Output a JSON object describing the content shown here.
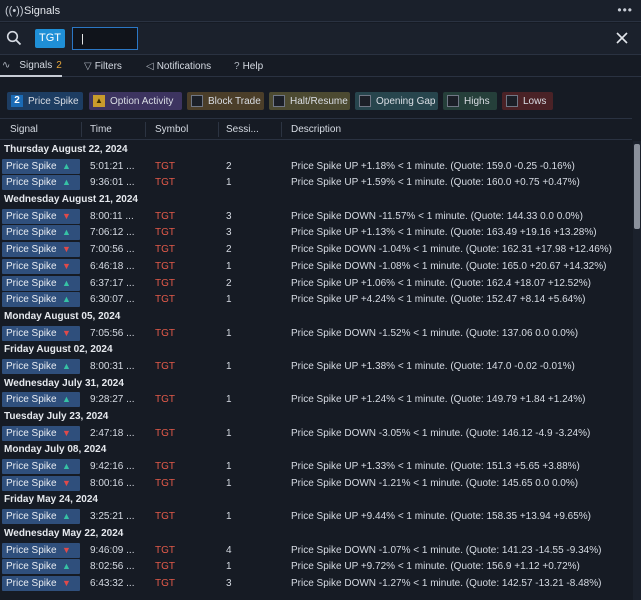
{
  "window": {
    "title": "Signals",
    "menu_icon": "ellipsis-icon"
  },
  "search": {
    "ticker": "TGT",
    "input_value": "|",
    "placeholder": ""
  },
  "tabs": [
    {
      "label": "Signals",
      "badge": "2",
      "icon": "pulse-icon"
    },
    {
      "label": "Filters",
      "icon": "filter-icon"
    },
    {
      "label": "Notifications",
      "icon": "megaphone-icon"
    },
    {
      "label": "Help",
      "icon": "question-icon"
    }
  ],
  "filters": [
    {
      "label": "Price Spike",
      "marker": "2",
      "bg": "#1d3d62",
      "color": "#1b6bb5"
    },
    {
      "label": "Option Activity",
      "marker": "lock",
      "bg": "#3d3460",
      "color": "#c99b2c"
    },
    {
      "label": "Block Trade",
      "marker": "box",
      "bg": "#4b3e29"
    },
    {
      "label": "Halt/Resume",
      "marker": "box",
      "bg": "#4c4a31"
    },
    {
      "label": "Opening Gap",
      "marker": "box",
      "bg": "#27454d"
    },
    {
      "label": "Highs",
      "marker": "box",
      "bg": "#253f3a"
    },
    {
      "label": "Lows",
      "marker": "box",
      "bg": "#4a2226"
    }
  ],
  "columns": [
    "Signal",
    "Time",
    "Symbol",
    "Sessi...",
    "Description"
  ],
  "groups": [
    {
      "date": "Thursday August 22, 2024",
      "rows": [
        {
          "signal": "Price Spike",
          "dir": "up",
          "time": "5:01:21 ...",
          "symbol": "TGT",
          "session": "2",
          "desc": "Price Spike UP +1.18% < 1 minute. (Quote: 159.0 -0.25 -0.16%)"
        },
        {
          "signal": "Price Spike",
          "dir": "up",
          "time": "9:36:01 ...",
          "symbol": "TGT",
          "session": "1",
          "desc": "Price Spike UP +1.59% < 1 minute. (Quote: 160.0 +0.75 +0.47%)"
        }
      ]
    },
    {
      "date": "Wednesday August 21, 2024",
      "rows": [
        {
          "signal": "Price Spike",
          "dir": "down",
          "time": "8:00:11 ...",
          "symbol": "TGT",
          "session": "3",
          "desc": "Price Spike DOWN -11.57% < 1 minute. (Quote: 144.33 0.0 0.0%)"
        },
        {
          "signal": "Price Spike",
          "dir": "up",
          "time": "7:06:12 ...",
          "symbol": "TGT",
          "session": "3",
          "desc": "Price Spike UP +1.13% < 1 minute. (Quote: 163.49 +19.16 +13.28%)"
        },
        {
          "signal": "Price Spike",
          "dir": "down",
          "time": "7:00:56 ...",
          "symbol": "TGT",
          "session": "2",
          "desc": "Price Spike DOWN -1.04% < 1 minute. (Quote: 162.31 +17.98 +12.46%)"
        },
        {
          "signal": "Price Spike",
          "dir": "down",
          "time": "6:46:18 ...",
          "symbol": "TGT",
          "session": "1",
          "desc": "Price Spike DOWN -1.08% < 1 minute. (Quote: 165.0 +20.67 +14.32%)"
        },
        {
          "signal": "Price Spike",
          "dir": "up",
          "time": "6:37:17 ...",
          "symbol": "TGT",
          "session": "2",
          "desc": "Price Spike UP +1.06% < 1 minute. (Quote: 162.4 +18.07 +12.52%)"
        },
        {
          "signal": "Price Spike",
          "dir": "up",
          "time": "6:30:07 ...",
          "symbol": "TGT",
          "session": "1",
          "desc": "Price Spike UP +4.24% < 1 minute. (Quote: 152.47 +8.14 +5.64%)"
        }
      ]
    },
    {
      "date": "Monday August 05, 2024",
      "rows": [
        {
          "signal": "Price Spike",
          "dir": "down",
          "time": "7:05:56 ...",
          "symbol": "TGT",
          "session": "1",
          "desc": "Price Spike DOWN -1.52% < 1 minute. (Quote: 137.06 0.0 0.0%)"
        }
      ]
    },
    {
      "date": "Friday August 02, 2024",
      "rows": [
        {
          "signal": "Price Spike",
          "dir": "up",
          "time": "8:00:31 ...",
          "symbol": "TGT",
          "session": "1",
          "desc": "Price Spike UP +1.38% < 1 minute. (Quote: 147.0 -0.02 -0.01%)"
        }
      ]
    },
    {
      "date": "Wednesday July 31, 2024",
      "rows": [
        {
          "signal": "Price Spike",
          "dir": "up",
          "time": "9:28:27 ...",
          "symbol": "TGT",
          "session": "1",
          "desc": "Price Spike UP +1.24% < 1 minute. (Quote: 149.79 +1.84 +1.24%)"
        }
      ]
    },
    {
      "date": "Tuesday July 23, 2024",
      "rows": [
        {
          "signal": "Price Spike",
          "dir": "down",
          "time": "2:47:18 ...",
          "symbol": "TGT",
          "session": "1",
          "desc": "Price Spike DOWN -3.05% < 1 minute. (Quote: 146.12 -4.9 -3.24%)"
        }
      ]
    },
    {
      "date": "Monday July 08, 2024",
      "rows": [
        {
          "signal": "Price Spike",
          "dir": "up",
          "time": "9:42:16 ...",
          "symbol": "TGT",
          "session": "1",
          "desc": "Price Spike UP +1.33% < 1 minute. (Quote: 151.3 +5.65 +3.88%)"
        },
        {
          "signal": "Price Spike",
          "dir": "down",
          "time": "8:00:16 ...",
          "symbol": "TGT",
          "session": "1",
          "desc": "Price Spike DOWN -1.21% < 1 minute. (Quote: 145.65 0.0 0.0%)"
        }
      ]
    },
    {
      "date": "Friday May 24, 2024",
      "rows": [
        {
          "signal": "Price Spike",
          "dir": "up",
          "time": "3:25:21 ...",
          "symbol": "TGT",
          "session": "1",
          "desc": "Price Spike UP +9.44% < 1 minute. (Quote: 158.35 +13.94 +9.65%)"
        }
      ]
    },
    {
      "date": "Wednesday May 22, 2024",
      "rows": [
        {
          "signal": "Price Spike",
          "dir": "down",
          "time": "9:46:09 ...",
          "symbol": "TGT",
          "session": "4",
          "desc": "Price Spike DOWN -1.07% < 1 minute. (Quote: 141.23 -14.55 -9.34%)"
        },
        {
          "signal": "Price Spike",
          "dir": "up",
          "time": "8:02:56 ...",
          "symbol": "TGT",
          "session": "1",
          "desc": "Price Spike UP +9.72% < 1 minute. (Quote: 156.9 +1.12 +0.72%)"
        },
        {
          "signal": "Price Spike",
          "dir": "down",
          "time": "6:43:32 ...",
          "symbol": "TGT",
          "session": "3",
          "desc": "Price Spike DOWN -1.27% < 1 minute. (Quote: 142.57 -13.21 -8.48%)"
        }
      ]
    }
  ]
}
